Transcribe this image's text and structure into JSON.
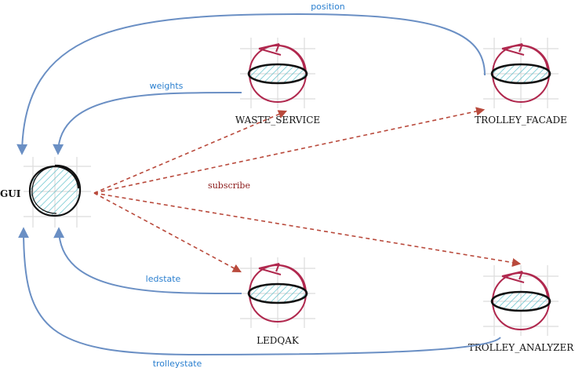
{
  "nodes": {
    "gui": {
      "label": "GUI"
    },
    "waste_service": {
      "label": "WASTE_SERVICE"
    },
    "trolley_facade": {
      "label": "TROLLEY_FACADE"
    },
    "ledqak": {
      "label": "LEDQAK"
    },
    "trolley_analyzer": {
      "label": "TROLLEY_ANALYZER"
    }
  },
  "edges": {
    "position": "position",
    "weights": "weights",
    "subscribe": "subscribe",
    "ledstate": "ledstate",
    "trolleystate": "trolleystate"
  },
  "colors": {
    "observe_edge": "#6a8fc4",
    "subscribe_edge": "#b94a3c",
    "edge_label_blue": "#2a7fcf",
    "subscribe_label": "#8b1a1a",
    "actor_stroke": "#b0284e",
    "gui_stroke": "#111111",
    "hatch": "#5bbfc9"
  }
}
